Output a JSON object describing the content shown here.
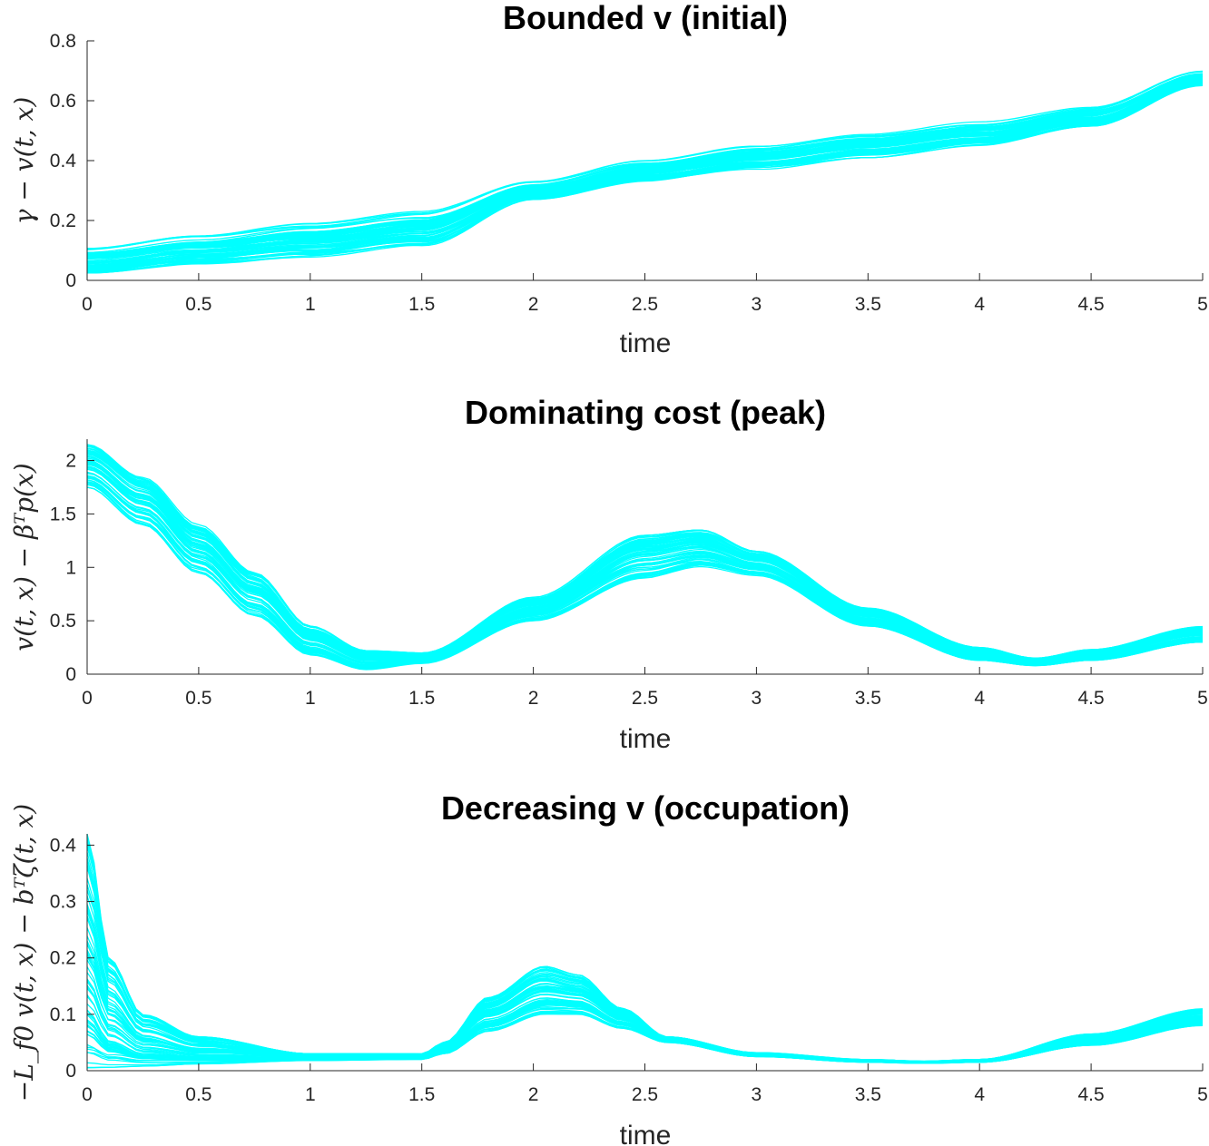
{
  "chart_data": [
    {
      "type": "line",
      "title": "Bounded v (initial)",
      "xlabel": "time",
      "ylabel": "γ − v(t, x)",
      "xlim": [
        0,
        5
      ],
      "ylim": [
        0,
        0.8
      ],
      "xticks": [
        "0",
        "0.5",
        "1",
        "1.5",
        "2",
        "2.5",
        "3",
        "3.5",
        "4",
        "4.5",
        "5"
      ],
      "yticks": [
        "0",
        "0.2",
        "0.4",
        "0.6",
        "0.8"
      ],
      "color": "#00ffff",
      "n_traces": 70,
      "band": {
        "x": [
          0,
          0.5,
          1,
          1.5,
          2,
          2.5,
          3,
          3.5,
          4,
          4.5,
          5
        ],
        "lower": [
          0.02,
          0.055,
          0.075,
          0.11,
          0.27,
          0.33,
          0.37,
          0.41,
          0.45,
          0.51,
          0.65
        ],
        "upper": [
          0.11,
          0.15,
          0.19,
          0.23,
          0.33,
          0.4,
          0.45,
          0.49,
          0.53,
          0.58,
          0.7
        ]
      }
    },
    {
      "type": "line",
      "title": "Dominating cost (peak)",
      "xlabel": "time",
      "ylabel": "v(t, x) − βᵀp(x)",
      "xlim": [
        0,
        5
      ],
      "ylim": [
        0,
        2.2
      ],
      "xticks": [
        "0",
        "0.5",
        "1",
        "1.5",
        "2",
        "2.5",
        "3",
        "3.5",
        "4",
        "4.5",
        "5"
      ],
      "yticks": [
        "0",
        "0.5",
        "1",
        "1.5",
        "2"
      ],
      "color": "#00ffff",
      "n_traces": 70,
      "band": {
        "x": [
          0,
          0.25,
          0.5,
          0.75,
          1,
          1.25,
          1.5,
          2,
          2.5,
          2.75,
          3,
          3.5,
          4,
          4.25,
          4.5,
          5
        ],
        "lower": [
          1.75,
          1.4,
          0.95,
          0.55,
          0.18,
          0.04,
          0.1,
          0.5,
          0.9,
          1.0,
          0.92,
          0.45,
          0.13,
          0.08,
          0.13,
          0.3
        ],
        "upper": [
          2.15,
          1.85,
          1.4,
          0.95,
          0.45,
          0.22,
          0.2,
          0.72,
          1.3,
          1.35,
          1.15,
          0.62,
          0.25,
          0.15,
          0.23,
          0.45
        ]
      }
    },
    {
      "type": "line",
      "title": "Decreasing v (occupation)",
      "xlabel": "time",
      "ylabel": "−L_f0 v(t, x) − bᵀζ(t, x)",
      "xlim": [
        0,
        5
      ],
      "ylim": [
        0,
        0.42
      ],
      "xticks": [
        "0",
        "0.5",
        "1",
        "1.5",
        "2",
        "2.5",
        "3",
        "3.5",
        "4",
        "4.5",
        "5"
      ],
      "yticks": [
        "0",
        "0.1",
        "0.2",
        "0.3",
        "0.4"
      ],
      "color": "#00ffff",
      "n_traces": 70,
      "band": {
        "x": [
          0,
          0.1,
          0.25,
          0.5,
          1,
          1.5,
          1.6,
          1.8,
          2.05,
          2.2,
          2.4,
          2.6,
          3,
          3.5,
          3.75,
          4,
          4.5,
          5
        ],
        "lower": [
          0.005,
          0.006,
          0.008,
          0.012,
          0.018,
          0.02,
          0.03,
          0.07,
          0.1,
          0.1,
          0.075,
          0.05,
          0.025,
          0.015,
          0.013,
          0.015,
          0.045,
          0.08
        ],
        "upper": [
          0.42,
          0.2,
          0.1,
          0.06,
          0.03,
          0.03,
          0.05,
          0.13,
          0.185,
          0.17,
          0.11,
          0.06,
          0.032,
          0.02,
          0.017,
          0.02,
          0.065,
          0.11
        ]
      }
    }
  ]
}
